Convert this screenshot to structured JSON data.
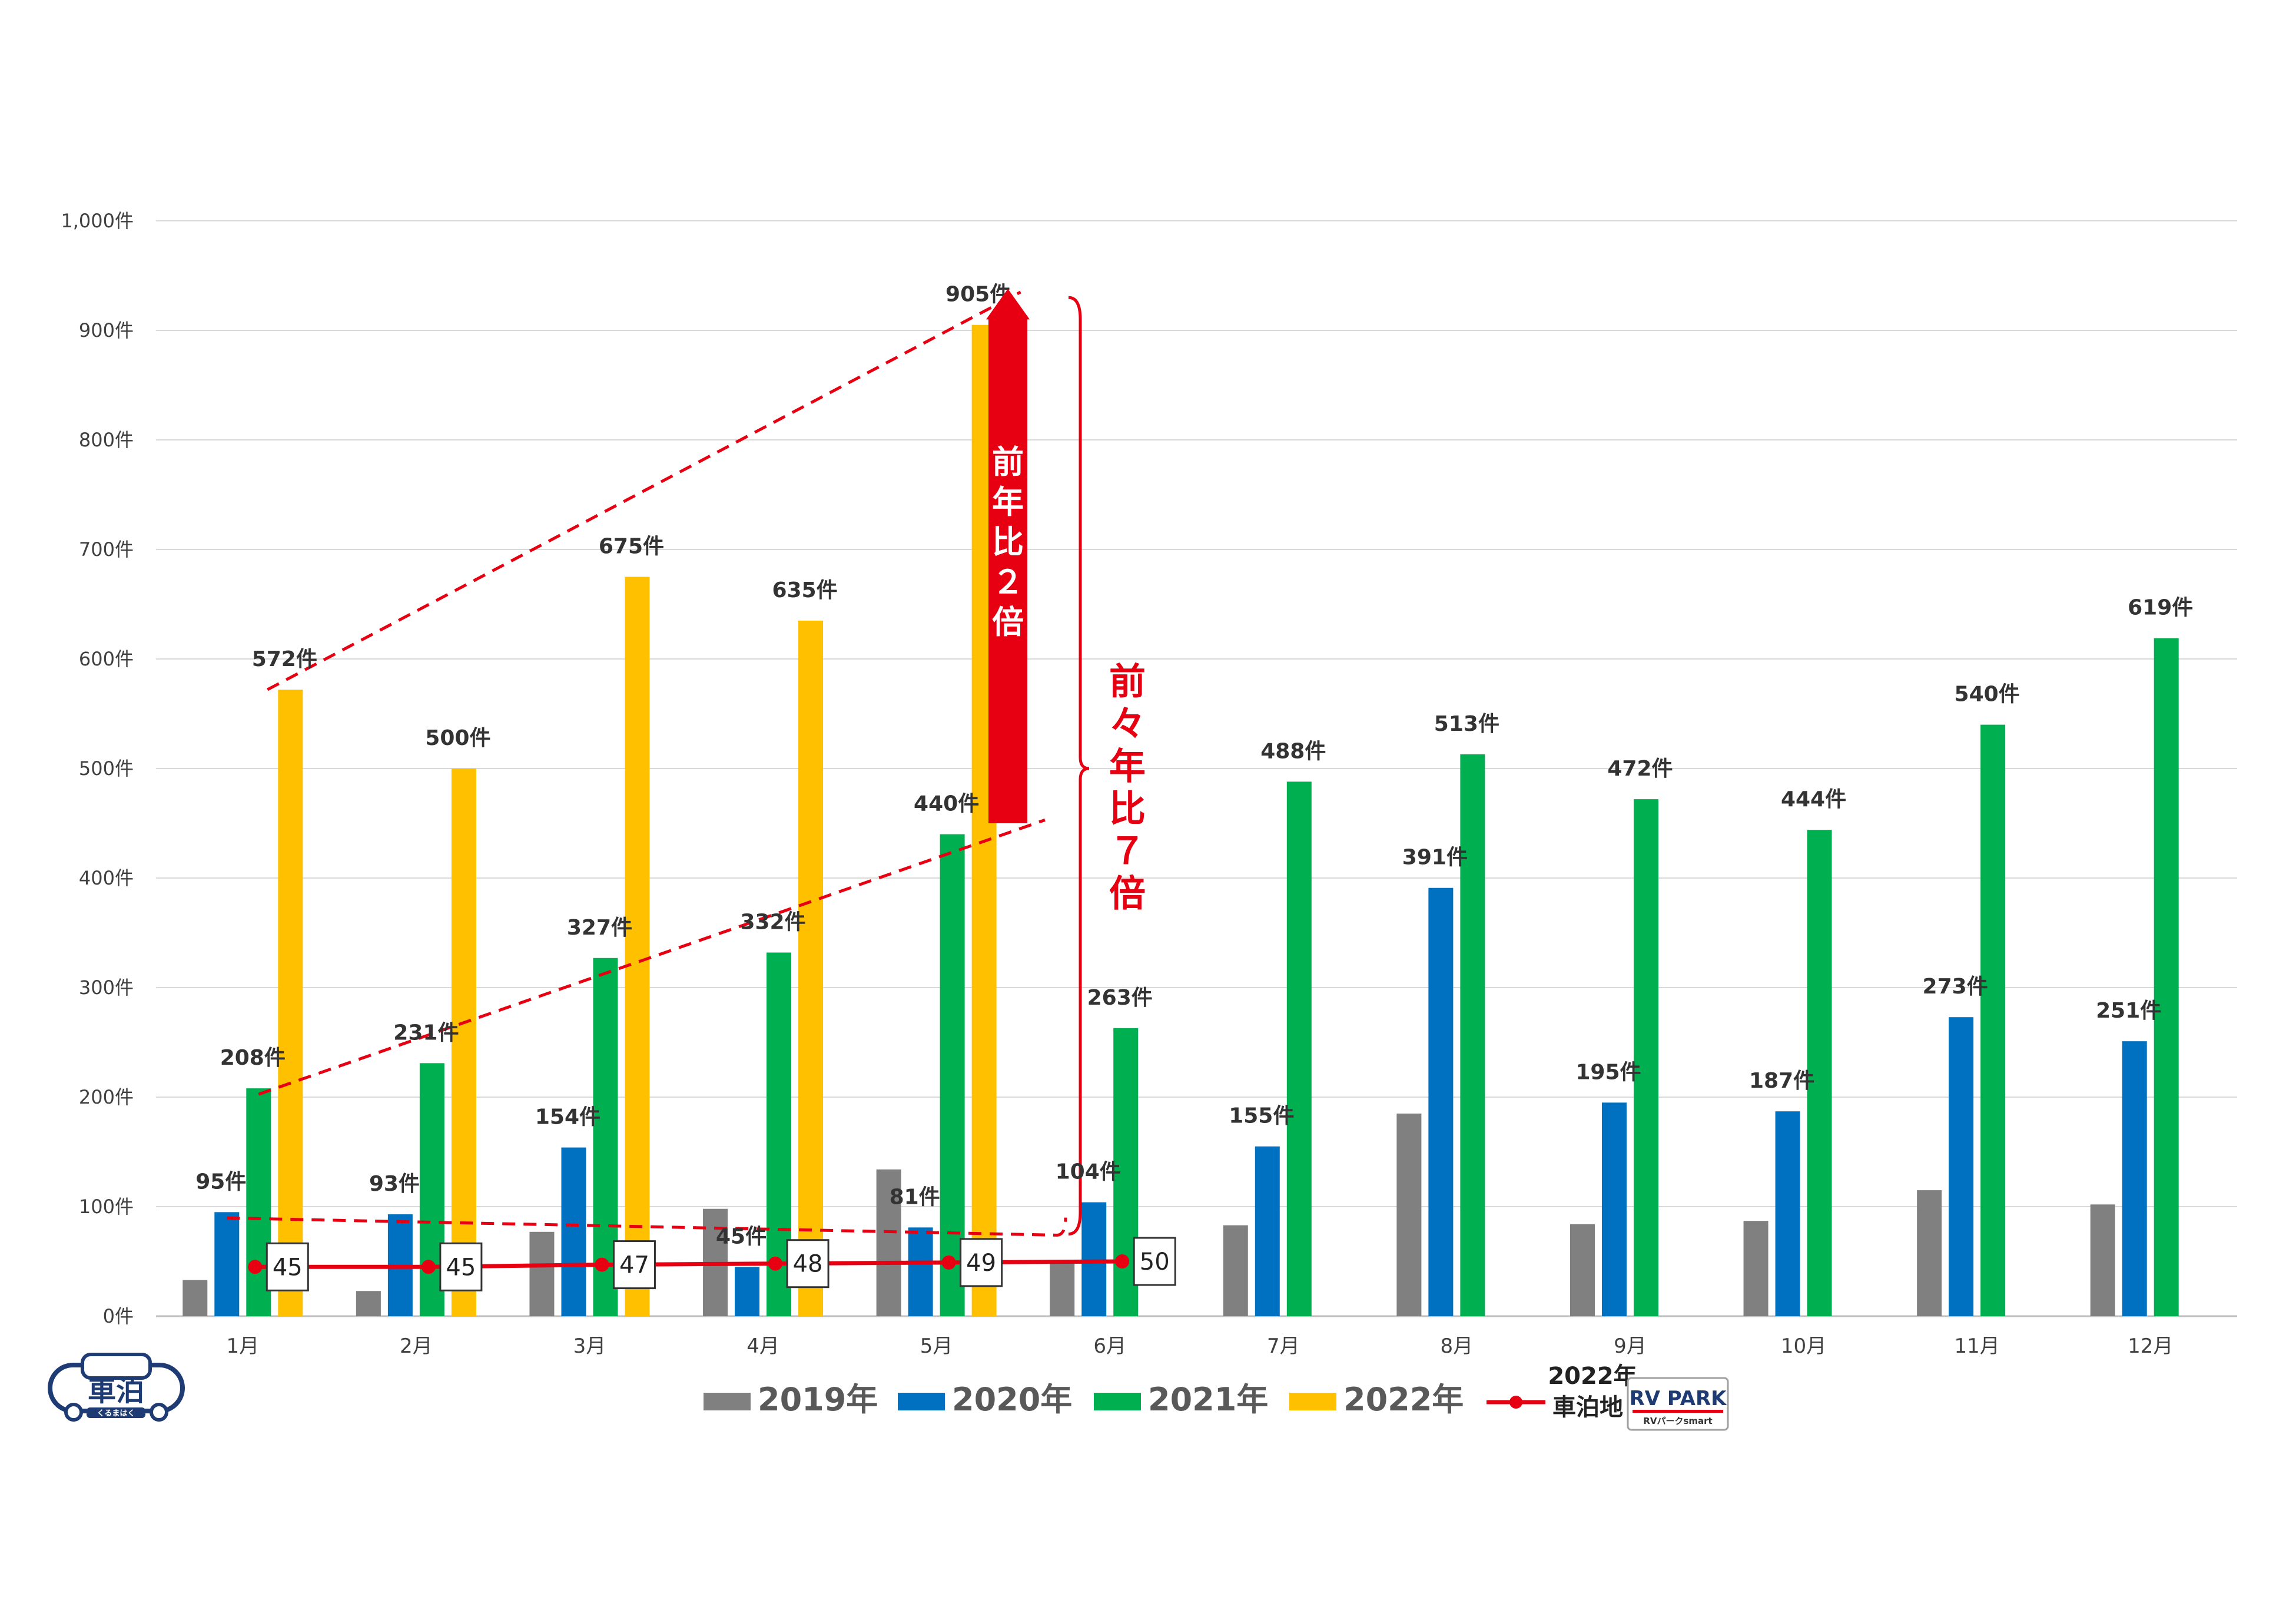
{
  "chart_data": {
    "type": "bar",
    "categories": [
      "1月",
      "2月",
      "3月",
      "4月",
      "5月",
      "6月",
      "7月",
      "8月",
      "9月",
      "10月",
      "11月",
      "12月"
    ],
    "y_ticks": [
      "0件",
      "100件",
      "200件",
      "300件",
      "400件",
      "500件",
      "600件",
      "700件",
      "800件",
      "900件",
      "1,000件"
    ],
    "ylim": [
      0,
      1000
    ],
    "series": [
      {
        "name": "2019年",
        "color": "#808080",
        "values": [
          33,
          23,
          77,
          98,
          134,
          48,
          83,
          185,
          84,
          87,
          115,
          102
        ],
        "labels": [
          null,
          null,
          null,
          null,
          null,
          null,
          null,
          null,
          null,
          null,
          null,
          null
        ]
      },
      {
        "name": "2020年",
        "color": "#0070c0",
        "values": [
          95,
          93,
          154,
          45,
          81,
          104,
          155,
          391,
          195,
          187,
          273,
          251
        ],
        "labels": [
          "95件",
          "93件",
          "154件",
          "45件",
          "81件",
          "104件",
          "155件",
          "391件",
          "195件",
          "187件",
          "273件",
          "251件"
        ]
      },
      {
        "name": "2021年",
        "color": "#00b050",
        "values": [
          208,
          231,
          327,
          332,
          440,
          263,
          488,
          513,
          472,
          444,
          540,
          619
        ],
        "labels": [
          "208件",
          "231件",
          "327件",
          "332件",
          "440件",
          "263件",
          "488件",
          "513件",
          "472件",
          "444件",
          "540件",
          "619件"
        ]
      },
      {
        "name": "2022年",
        "color": "#ffc000",
        "values": [
          572,
          500,
          675,
          635,
          905,
          null,
          null,
          null,
          null,
          null,
          null,
          null
        ],
        "labels": [
          "572件",
          "500件",
          "675件",
          "635件",
          "905件",
          null,
          null,
          null,
          null,
          null,
          null,
          null
        ]
      }
    ],
    "line_series": {
      "name_line1": "2022年",
      "name_line2": "車泊地",
      "color": "#e60012",
      "values": [
        45,
        45,
        47,
        48,
        49,
        50
      ],
      "labels": [
        "45",
        "45",
        "47",
        "48",
        "49",
        "50"
      ]
    },
    "annotations": {
      "yoy_text": [
        "前",
        "年",
        "比",
        "２",
        "倍"
      ],
      "two_year_text": [
        "前",
        "々",
        "年",
        "比",
        "７",
        "倍"
      ]
    }
  },
  "logos": {
    "kurumahaku": {
      "main": "車泊",
      "sub": "くるまはく"
    },
    "rvpark": {
      "main": "RV PARK",
      "sub": "RVパークsmart"
    }
  }
}
